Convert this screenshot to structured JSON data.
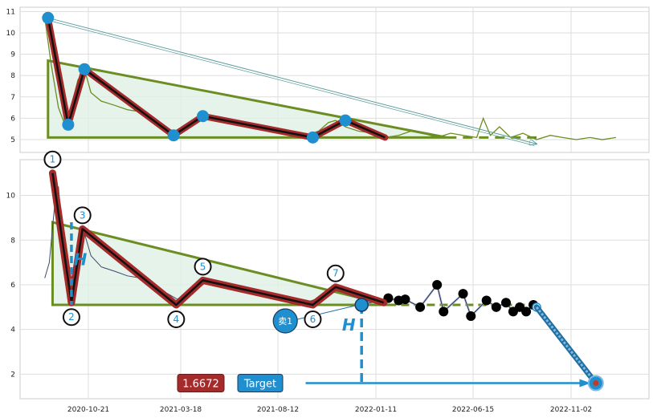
{
  "chart_data": [
    {
      "panel": "overview",
      "type": "line",
      "ylim": [
        4.4,
        11.2
      ],
      "yticks": [
        5,
        6,
        7,
        8,
        9,
        10,
        11
      ],
      "grid": true,
      "price_series": {
        "color": "#6b8e23",
        "x": [
          "2020-08-15",
          "2020-08-25",
          "2020-09-05",
          "2020-09-15",
          "2020-09-25",
          "2020-10-05",
          "2020-10-15",
          "2020-10-25",
          "2020-11-10",
          "2020-12-01",
          "2020-12-20",
          "2021-01-10",
          "2021-02-01",
          "2021-02-20",
          "2021-03-10",
          "2021-03-25",
          "2021-04-10",
          "2021-05-01",
          "2021-05-20",
          "2021-06-10",
          "2021-07-01",
          "2021-07-20",
          "2021-08-10",
          "2021-09-01",
          "2021-09-20",
          "2021-10-10",
          "2021-10-25",
          "2021-11-05",
          "2021-11-20",
          "2021-12-10",
          "2022-01-01",
          "2022-01-20",
          "2022-02-10",
          "2022-03-01",
          "2022-03-20",
          "2022-04-10",
          "2022-05-01",
          "2022-05-20",
          "2022-06-10",
          "2022-06-20",
          "2022-07-01",
          "2022-07-15",
          "2022-08-01",
          "2022-08-20",
          "2022-09-10",
          "2022-10-01",
          "2022-10-20",
          "2022-11-10",
          "2022-12-01",
          "2022-12-20",
          "2023-01-10"
        ],
        "y": [
          10.7,
          8.5,
          6.5,
          5.7,
          6.6,
          7.8,
          8.3,
          7.2,
          6.8,
          6.6,
          6.4,
          6.3,
          5.9,
          5.5,
          5.3,
          5.6,
          6.0,
          6.1,
          5.9,
          5.8,
          5.7,
          5.6,
          5.5,
          5.3,
          5.2,
          5.4,
          5.8,
          5.9,
          5.6,
          5.4,
          5.3,
          5.1,
          5.2,
          5.4,
          5.3,
          5.1,
          5.3,
          5.2,
          5.1,
          6.0,
          5.2,
          5.6,
          5.1,
          5.3,
          5.0,
          5.2,
          5.1,
          5.0,
          5.1,
          5.0,
          5.1
        ]
      },
      "zigzag": {
        "x": [
          "2020-08-20",
          "2020-09-20",
          "2020-10-15",
          "2021-03-01",
          "2021-04-15",
          "2021-10-01",
          "2021-11-20",
          "2022-01-20"
        ],
        "y": [
          10.7,
          5.7,
          8.3,
          5.2,
          6.1,
          5.1,
          5.9,
          5.1
        ],
        "pivots": [
          0,
          1,
          2,
          3,
          4,
          5,
          6
        ]
      },
      "triangle": {
        "apex": [
          "2020-08-20",
          8.7
        ],
        "base_start": [
          "2020-08-20",
          5.1
        ],
        "tip": [
          "2022-04-25",
          5.1
        ]
      },
      "dashed_extension": {
        "from": "2022-04-25",
        "to": "2022-09-10",
        "y": 5.1
      },
      "diagonal_arrow": {
        "from": [
          "2020-08-20",
          10.7
        ],
        "to": [
          "2022-09-10",
          4.8
        ]
      },
      "colors": {
        "price": "#6b8e23",
        "zigzag_outer": "#a52a2a",
        "zigzag_inner": "#111111",
        "pivot": "#1f8fd0",
        "triangle": "#6b8e23",
        "triangle_fill": "#dff0e6",
        "arrow": "#5f9ea0"
      }
    },
    {
      "panel": "detail",
      "type": "line",
      "ylim": [
        0.9,
        11.6
      ],
      "yticks": [
        2,
        4,
        6,
        8,
        10
      ],
      "xtick_labels": [
        "2020-10-21",
        "2021-03-18",
        "2021-08-12",
        "2022-01-11",
        "2022-06-15",
        "2022-11-02"
      ],
      "xtick_dates": [
        "2020-10-21",
        "2021-03-18",
        "2021-08-12",
        "2022-01-11",
        "2022-06-15",
        "2022-11-02"
      ],
      "grid": true,
      "price_series": {
        "color": "#3b4a6b",
        "x": [
          "2020-08-15",
          "2020-08-22",
          "2020-08-30",
          "2020-09-05",
          "2020-09-12",
          "2020-09-20",
          "2020-09-28",
          "2020-10-06",
          "2020-10-15",
          "2020-10-25",
          "2020-11-10",
          "2020-12-01",
          "2020-12-20",
          "2021-01-10",
          "2021-02-01",
          "2021-02-20",
          "2021-03-10",
          "2021-03-25",
          "2021-04-10",
          "2021-05-01",
          "2021-05-20",
          "2021-06-10",
          "2021-07-01",
          "2021-07-20",
          "2021-08-10",
          "2021-09-01",
          "2021-09-20",
          "2021-10-10",
          "2021-10-25",
          "2021-11-05",
          "2021-11-20",
          "2021-12-10",
          "2022-01-01"
        ],
        "y": [
          6.3,
          7.0,
          9.5,
          10.4,
          8.0,
          5.8,
          6.6,
          7.5,
          8.3,
          7.3,
          6.8,
          6.6,
          6.4,
          6.3,
          5.9,
          5.6,
          5.3,
          5.6,
          6.0,
          6.1,
          5.9,
          5.8,
          5.7,
          5.6,
          5.5,
          5.3,
          5.2,
          5.4,
          5.8,
          5.9,
          5.6,
          5.4,
          5.2
        ]
      },
      "zigzag": {
        "x": [
          "2020-08-27",
          "2020-09-25",
          "2020-10-12",
          "2021-03-05",
          "2021-04-15",
          "2021-10-01",
          "2021-11-05",
          "2022-01-18"
        ],
        "y": [
          11.0,
          5.2,
          8.5,
          5.1,
          6.2,
          5.1,
          5.9,
          5.2
        ]
      },
      "pivot_labels": [
        {
          "label": "1",
          "x": "2020-08-27",
          "y": 11.0,
          "pos": "above"
        },
        {
          "label": "2",
          "x": "2020-09-25",
          "y": 5.2,
          "pos": "below"
        },
        {
          "label": "3",
          "x": "2020-10-12",
          "y": 8.5,
          "pos": "above"
        },
        {
          "label": "4",
          "x": "2021-03-05",
          "y": 5.1,
          "pos": "below"
        },
        {
          "label": "5",
          "x": "2021-04-15",
          "y": 6.2,
          "pos": "above"
        },
        {
          "label": "6",
          "x": "2021-10-01",
          "y": 5.1,
          "pos": "below"
        },
        {
          "label": "7",
          "x": "2021-11-05",
          "y": 5.9,
          "pos": "above"
        }
      ],
      "triangle": {
        "apex": [
          "2020-08-27",
          8.8
        ],
        "base_start": [
          "2020-08-27",
          5.1
        ],
        "tip": [
          "2022-01-25",
          5.1
        ]
      },
      "dashed_extension": {
        "from": "2022-01-25",
        "to": "2022-09-10",
        "y": 5.1
      },
      "height_marker": {
        "label": "H",
        "x": "2020-09-25",
        "y_from": 5.1,
        "y_to": 8.8
      },
      "breakout": {
        "label": "卖1",
        "x": "2021-12-15",
        "y": 5.1
      },
      "projection_marker": {
        "label": "H",
        "x": "2021-12-15",
        "y_from": 5.1,
        "y_to": 1.6
      },
      "future_points": {
        "x": [
          "2021-12-15",
          "2022-01-25",
          "2022-02-10",
          "2022-02-20",
          "2022-03-15",
          "2022-04-10",
          "2022-04-20",
          "2022-05-20",
          "2022-06-01",
          "2022-06-25",
          "2022-07-10",
          "2022-07-25",
          "2022-08-05",
          "2022-08-15",
          "2022-08-25",
          "2022-09-05",
          "2022-09-10"
        ],
        "y": [
          5.1,
          5.4,
          5.3,
          5.35,
          5.0,
          6.0,
          4.8,
          5.6,
          4.6,
          5.3,
          5.0,
          5.2,
          4.8,
          5.0,
          4.8,
          5.1,
          5.0
        ]
      },
      "target_arrow": {
        "from": [
          "2022-09-10",
          5.0
        ],
        "to": [
          "2022-12-10",
          1.6
        ]
      },
      "target_line": {
        "from": "2021-09-20",
        "to": "2022-12-01",
        "y": 1.6
      },
      "badges": {
        "value": "1.6672",
        "target": "Target"
      },
      "colors": {
        "zigzag_outer": "#a52a2a",
        "zigzag_inner": "#111111",
        "triangle": "#6b8e23",
        "triangle_fill": "#dff0e6",
        "marker": "#1f8fd0",
        "badge_value_bg": "#a52a2a",
        "badge_target_bg": "#1f8fd0",
        "future_line": "#aab8d8"
      }
    }
  ]
}
